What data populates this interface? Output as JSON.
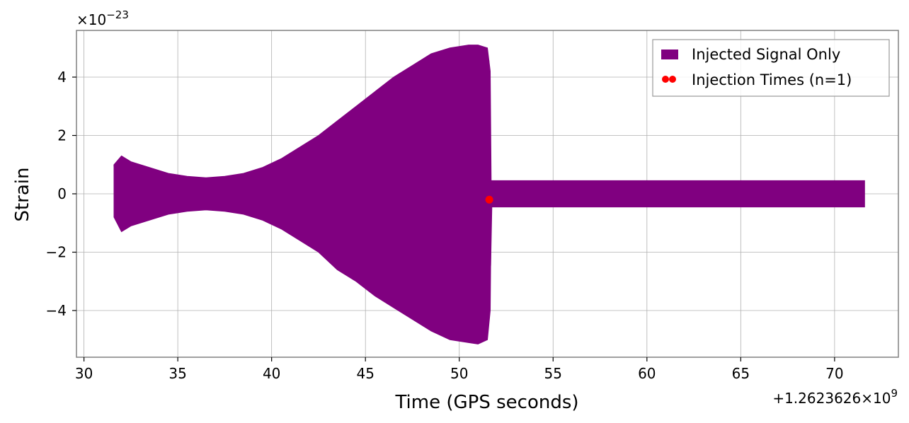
{
  "chart_data": {
    "type": "line",
    "xlabel": "Time (GPS seconds)",
    "ylabel": "Strain",
    "x_offset_label": "+1.2623626×10",
    "x_offset_exp": "9",
    "y_multiplier_label": "×10",
    "y_multiplier_exp": "−23",
    "xlim": [
      29.6,
      73.4
    ],
    "ylim": [
      -5.6,
      5.6
    ],
    "x_ticks": [
      30,
      35,
      40,
      45,
      50,
      55,
      60,
      65,
      70
    ],
    "x_tick_labels": [
      "30",
      "35",
      "40",
      "45",
      "50",
      "55",
      "60",
      "65",
      "70"
    ],
    "y_ticks": [
      -4,
      -2,
      0,
      2,
      4
    ],
    "y_tick_labels": [
      "−4",
      "−2",
      "0",
      "2",
      "4"
    ],
    "grid": true,
    "legend_position": "top-right",
    "series": [
      {
        "name": "Injected Signal Only",
        "kind": "signal",
        "color": "#800080",
        "x_range": [
          31.6,
          71.6
        ],
        "envelope": {
          "x": [
            31.6,
            32.0,
            32.5,
            33.5,
            34.5,
            35.5,
            36.5,
            37.5,
            38.5,
            39.5,
            40.5,
            41.5,
            42.5,
            43.5,
            44.5,
            45.5,
            46.5,
            47.5,
            48.5,
            49.5,
            50.5,
            51.0,
            51.5,
            51.65,
            51.7,
            71.6
          ],
          "upper": [
            1.0,
            1.3,
            1.1,
            0.9,
            0.7,
            0.6,
            0.55,
            0.6,
            0.7,
            0.9,
            1.2,
            1.6,
            2.0,
            2.5,
            3.0,
            3.5,
            4.0,
            4.4,
            4.8,
            5.0,
            5.1,
            5.1,
            5.0,
            4.2,
            0.45,
            0.45
          ],
          "lower": [
            -0.8,
            -1.3,
            -1.1,
            -0.9,
            -0.7,
            -0.6,
            -0.55,
            -0.6,
            -0.7,
            -0.9,
            -1.2,
            -1.6,
            -2.0,
            -2.6,
            -3.0,
            -3.5,
            -3.9,
            -4.3,
            -4.7,
            -5.0,
            -5.1,
            -5.15,
            -5.0,
            -4.0,
            -0.45,
            -0.45
          ]
        }
      },
      {
        "name": "Injection Times (n=1)",
        "kind": "marker",
        "color": "#ff0000",
        "x": [
          51.6
        ],
        "y": [
          -0.2
        ]
      }
    ]
  }
}
